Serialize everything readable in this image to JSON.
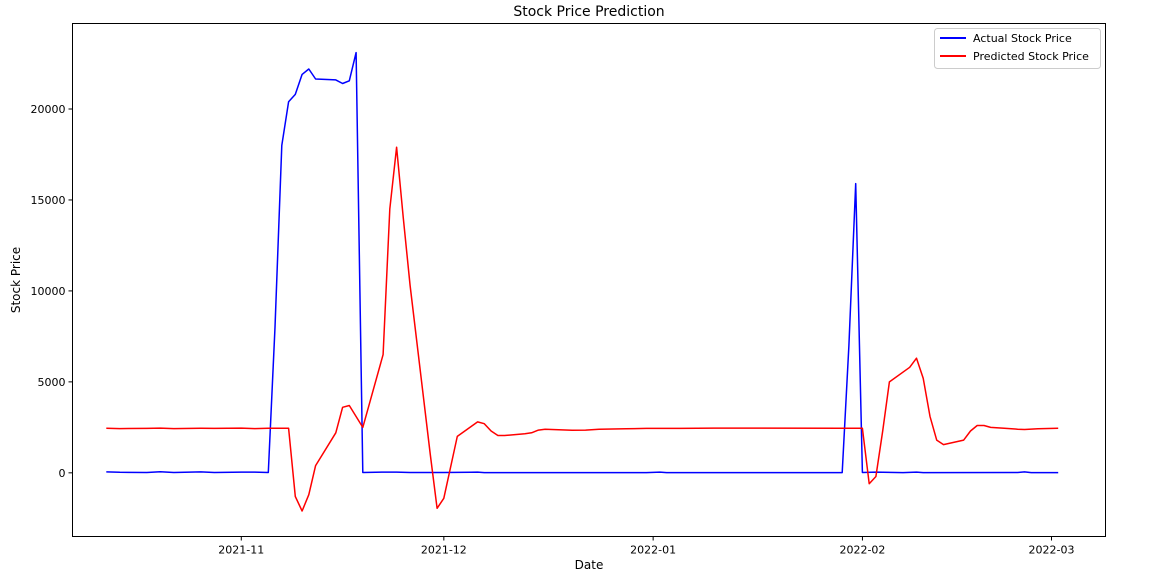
{
  "chart_data": {
    "type": "line",
    "title": "Stock Price Prediction",
    "xlabel": "Date",
    "ylabel": "Stock Price",
    "xlim": [
      "2021-10-07",
      "2022-03-09"
    ],
    "ylim": [
      -3500,
      24700
    ],
    "x_ticks": [
      "2021-11-01",
      "2021-12-01",
      "2022-01-01",
      "2022-02-01",
      "2022-03-01"
    ],
    "x_tick_labels": [
      "2021-11",
      "2021-12",
      "2022-01",
      "2022-02",
      "2022-03"
    ],
    "y_ticks": [
      0,
      5000,
      10000,
      15000,
      20000
    ],
    "y_tick_labels": [
      "0",
      "5000",
      "10000",
      "15000",
      "20000"
    ],
    "grid": false,
    "legend_position": "top-right",
    "series": [
      {
        "name": "Actual Stock Price",
        "color": "#0000ff",
        "points": [
          [
            "2021-10-12",
            50
          ],
          [
            "2021-10-14",
            30
          ],
          [
            "2021-10-18",
            20
          ],
          [
            "2021-10-20",
            60
          ],
          [
            "2021-10-22",
            20
          ],
          [
            "2021-10-26",
            50
          ],
          [
            "2021-10-28",
            20
          ],
          [
            "2021-11-01",
            40
          ],
          [
            "2021-11-03",
            40
          ],
          [
            "2021-11-05",
            20
          ],
          [
            "2021-11-06",
            8000
          ],
          [
            "2021-11-07",
            18000
          ],
          [
            "2021-11-08",
            20400
          ],
          [
            "2021-11-09",
            20800
          ],
          [
            "2021-11-10",
            21900
          ],
          [
            "2021-11-11",
            22200
          ],
          [
            "2021-11-12",
            21650
          ],
          [
            "2021-11-15",
            21600
          ],
          [
            "2021-11-16",
            21400
          ],
          [
            "2021-11-17",
            21550
          ],
          [
            "2021-11-18",
            23100
          ],
          [
            "2021-11-19",
            20
          ],
          [
            "2021-11-22",
            40
          ],
          [
            "2021-11-24",
            40
          ],
          [
            "2021-11-26",
            20
          ],
          [
            "2021-12-01",
            20
          ],
          [
            "2021-12-05",
            30
          ],
          [
            "2021-12-06",
            40
          ],
          [
            "2021-12-07",
            10
          ],
          [
            "2021-12-31",
            10
          ],
          [
            "2022-01-02",
            40
          ],
          [
            "2022-01-03",
            10
          ],
          [
            "2022-01-29",
            10
          ],
          [
            "2022-01-30",
            7000
          ],
          [
            "2022-01-31",
            15900
          ],
          [
            "2022-02-01",
            20
          ],
          [
            "2022-02-03",
            40
          ],
          [
            "2022-02-07",
            10
          ],
          [
            "2022-02-09",
            40
          ],
          [
            "2022-02-10",
            10
          ],
          [
            "2022-02-24",
            20
          ],
          [
            "2022-02-25",
            50
          ],
          [
            "2022-02-26",
            10
          ],
          [
            "2022-03-02",
            10
          ]
        ]
      },
      {
        "name": "Predicted Stock Price",
        "color": "#ff0000",
        "points": [
          [
            "2021-10-12",
            2450
          ],
          [
            "2021-10-14",
            2430
          ],
          [
            "2021-10-18",
            2440
          ],
          [
            "2021-10-20",
            2460
          ],
          [
            "2021-10-22",
            2430
          ],
          [
            "2021-10-26",
            2450
          ],
          [
            "2021-10-28",
            2440
          ],
          [
            "2021-11-01",
            2460
          ],
          [
            "2021-11-03",
            2430
          ],
          [
            "2021-11-05",
            2450
          ],
          [
            "2021-11-08",
            2450
          ],
          [
            "2021-11-09",
            -1300
          ],
          [
            "2021-11-10",
            -2100
          ],
          [
            "2021-11-11",
            -1200
          ],
          [
            "2021-11-12",
            400
          ],
          [
            "2021-11-15",
            2200
          ],
          [
            "2021-11-16",
            3600
          ],
          [
            "2021-11-17",
            3700
          ],
          [
            "2021-11-19",
            2500
          ],
          [
            "2021-11-22",
            6500
          ],
          [
            "2021-11-23",
            14500
          ],
          [
            "2021-11-24",
            17900
          ],
          [
            "2021-11-25",
            14000
          ],
          [
            "2021-11-26",
            10300
          ],
          [
            "2021-11-29",
            1000
          ],
          [
            "2021-11-30",
            -1950
          ],
          [
            "2021-12-01",
            -1400
          ],
          [
            "2021-12-03",
            2000
          ],
          [
            "2021-12-06",
            2800
          ],
          [
            "2021-12-07",
            2700
          ],
          [
            "2021-12-08",
            2300
          ],
          [
            "2021-12-09",
            2050
          ],
          [
            "2021-12-10",
            2050
          ],
          [
            "2021-12-13",
            2150
          ],
          [
            "2021-12-14",
            2200
          ],
          [
            "2021-12-15",
            2350
          ],
          [
            "2021-12-16",
            2400
          ],
          [
            "2021-12-17",
            2380
          ],
          [
            "2021-12-20",
            2340
          ],
          [
            "2021-12-22",
            2350
          ],
          [
            "2021-12-24",
            2400
          ],
          [
            "2021-12-28",
            2420
          ],
          [
            "2021-12-31",
            2440
          ],
          [
            "2022-01-05",
            2440
          ],
          [
            "2022-01-10",
            2460
          ],
          [
            "2022-01-29",
            2450
          ],
          [
            "2022-02-01",
            2450
          ],
          [
            "2022-02-02",
            -600
          ],
          [
            "2022-02-03",
            -200
          ],
          [
            "2022-02-04",
            2300
          ],
          [
            "2022-02-05",
            5000
          ],
          [
            "2022-02-08",
            5800
          ],
          [
            "2022-02-09",
            6300
          ],
          [
            "2022-02-10",
            5200
          ],
          [
            "2022-02-11",
            3100
          ],
          [
            "2022-02-12",
            1800
          ],
          [
            "2022-02-13",
            1550
          ],
          [
            "2022-02-16",
            1800
          ],
          [
            "2022-02-17",
            2300
          ],
          [
            "2022-02-18",
            2600
          ],
          [
            "2022-02-19",
            2600
          ],
          [
            "2022-02-20",
            2500
          ],
          [
            "2022-02-22",
            2450
          ],
          [
            "2022-02-24",
            2400
          ],
          [
            "2022-02-25",
            2380
          ],
          [
            "2022-02-27",
            2420
          ],
          [
            "2022-03-02",
            2450
          ]
        ]
      }
    ]
  }
}
